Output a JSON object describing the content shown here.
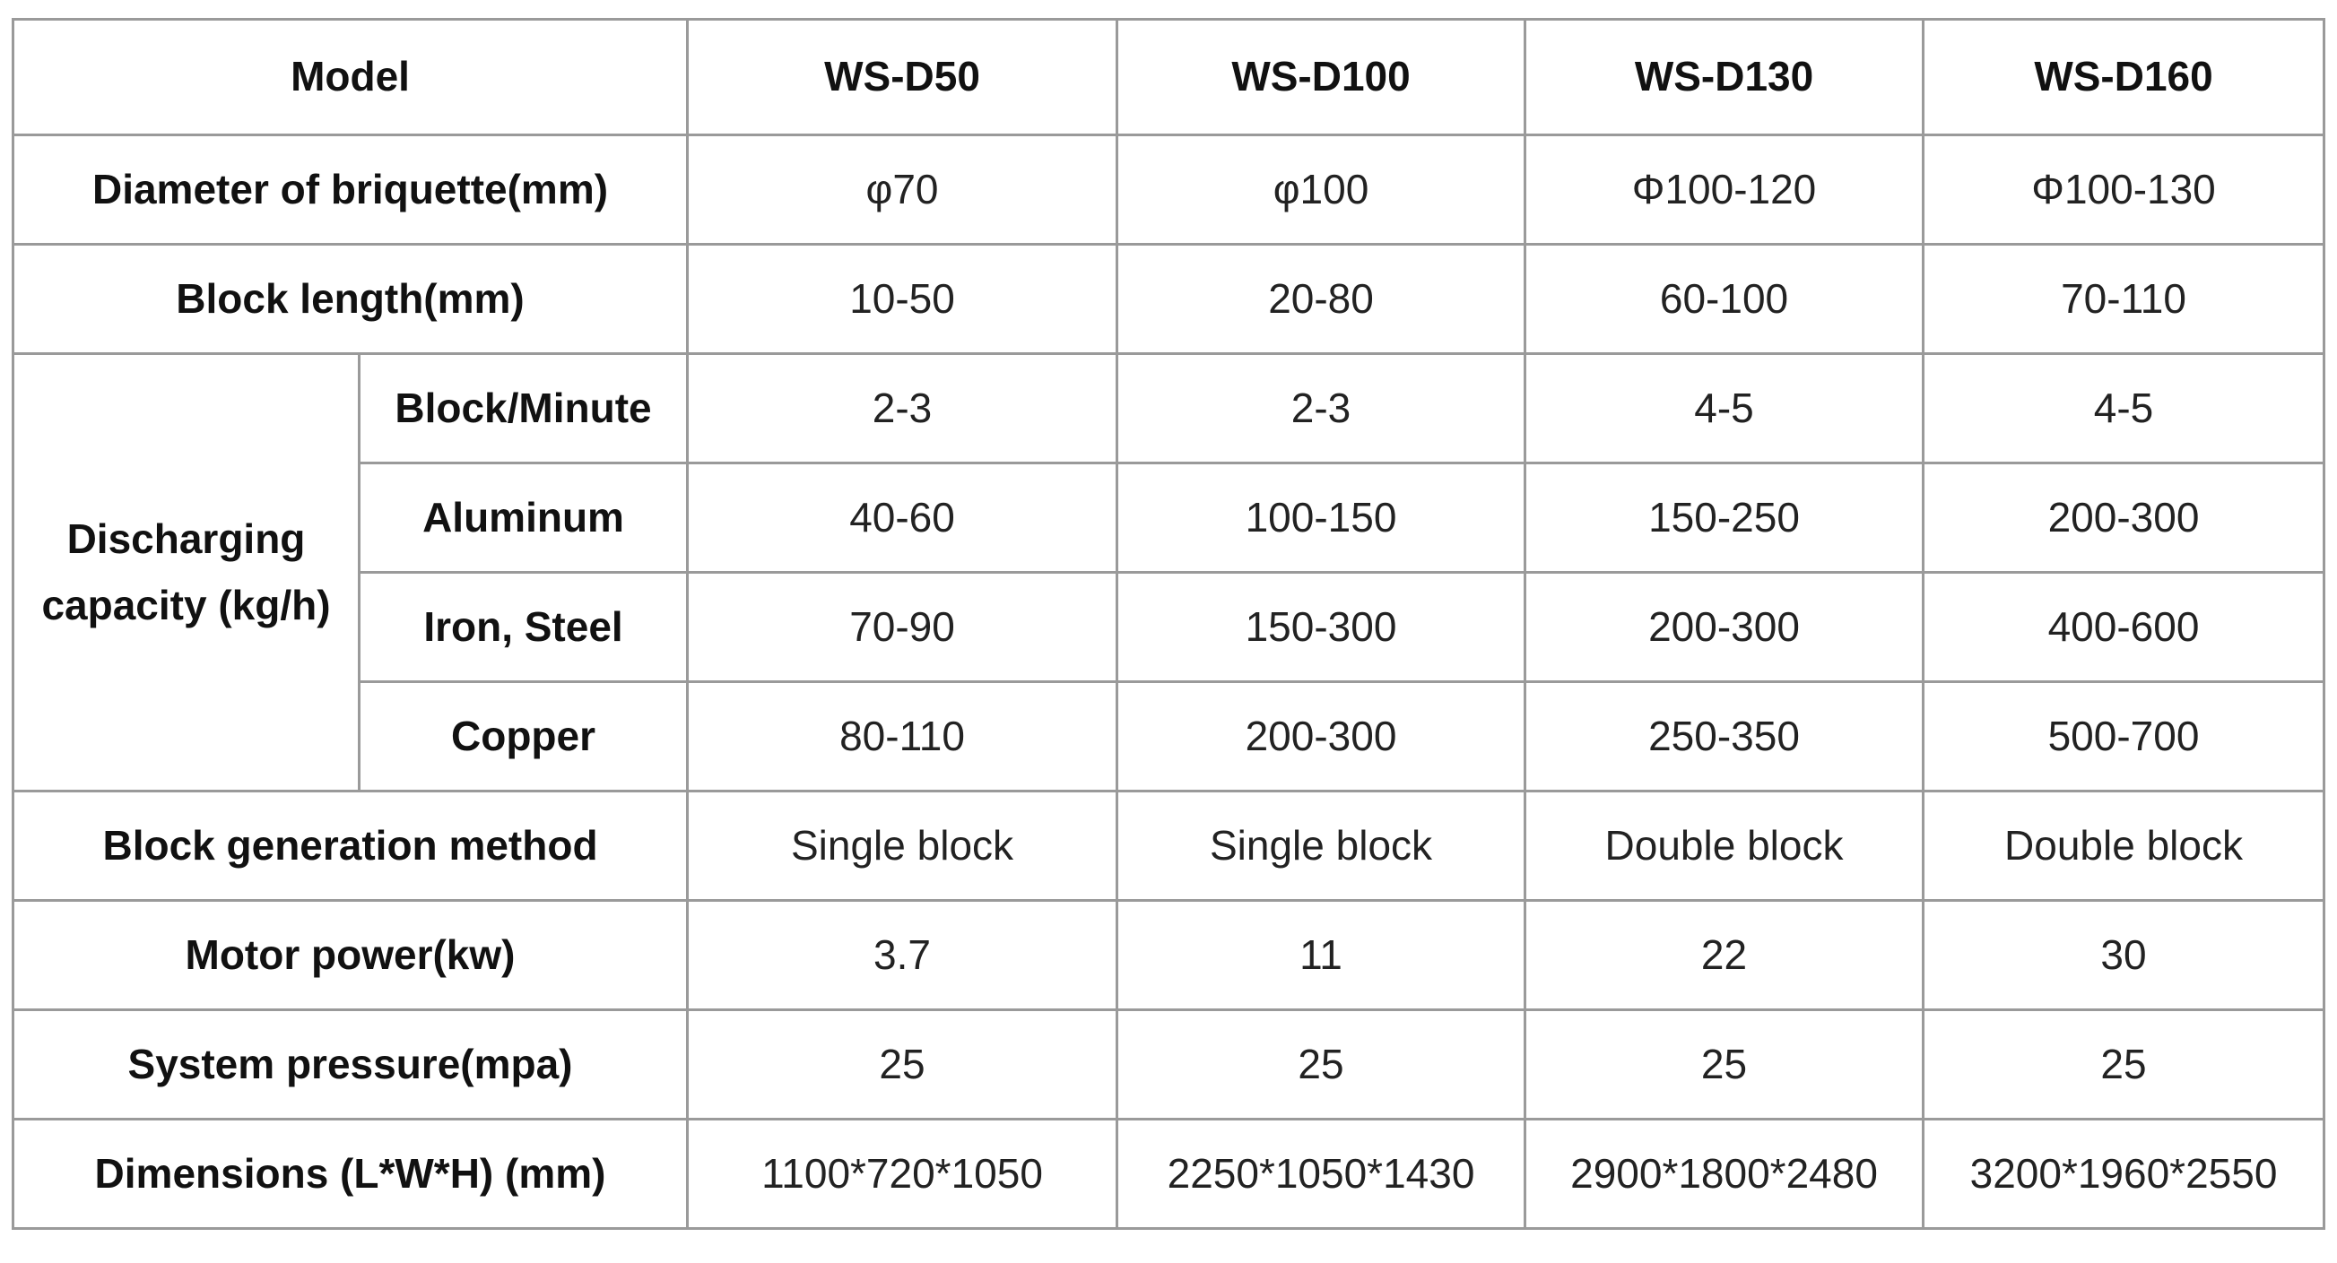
{
  "table": {
    "header": [
      "Model",
      "WS-D50",
      "WS-D100",
      "WS-D130",
      "WS-D160"
    ],
    "rows": [
      {
        "label": "Diameter of briquette(mm)",
        "values": [
          "φ70",
          "φ100",
          "Φ100-120",
          "Φ100-130"
        ]
      },
      {
        "label": "Block length(mm)",
        "values": [
          "10-50",
          "20-80",
          "60-100",
          "70-110"
        ]
      },
      {
        "label": "Discharging capacity (kg/h)",
        "subrows": [
          {
            "label": "Block/Minute",
            "values": [
              "2-3",
              "2-3",
              "4-5",
              "4-5"
            ]
          },
          {
            "label": "Aluminum",
            "values": [
              "40-60",
              "100-150",
              "150-250",
              "200-300"
            ]
          },
          {
            "label": "Iron, Steel",
            "values": [
              "70-90",
              "150-300",
              "200-300",
              "400-600"
            ]
          },
          {
            "label": "Copper",
            "values": [
              "80-110",
              "200-300",
              "250-350",
              "500-700"
            ]
          }
        ]
      },
      {
        "label": "Block generation method",
        "values": [
          "Single block",
          "Single block",
          "Double block",
          "Double block"
        ]
      },
      {
        "label": "Motor power(kw)",
        "values": [
          "3.7",
          "11",
          "22",
          "30"
        ]
      },
      {
        "label": "System pressure(mpa)",
        "values": [
          "25",
          "25",
          "25",
          "25"
        ]
      },
      {
        "label": "Dimensions (L*W*H) (mm)",
        "values": [
          "1100*720*1050",
          "2250*1050*1430",
          "2900*1800*2480",
          "3200*1960*2550"
        ]
      }
    ]
  }
}
